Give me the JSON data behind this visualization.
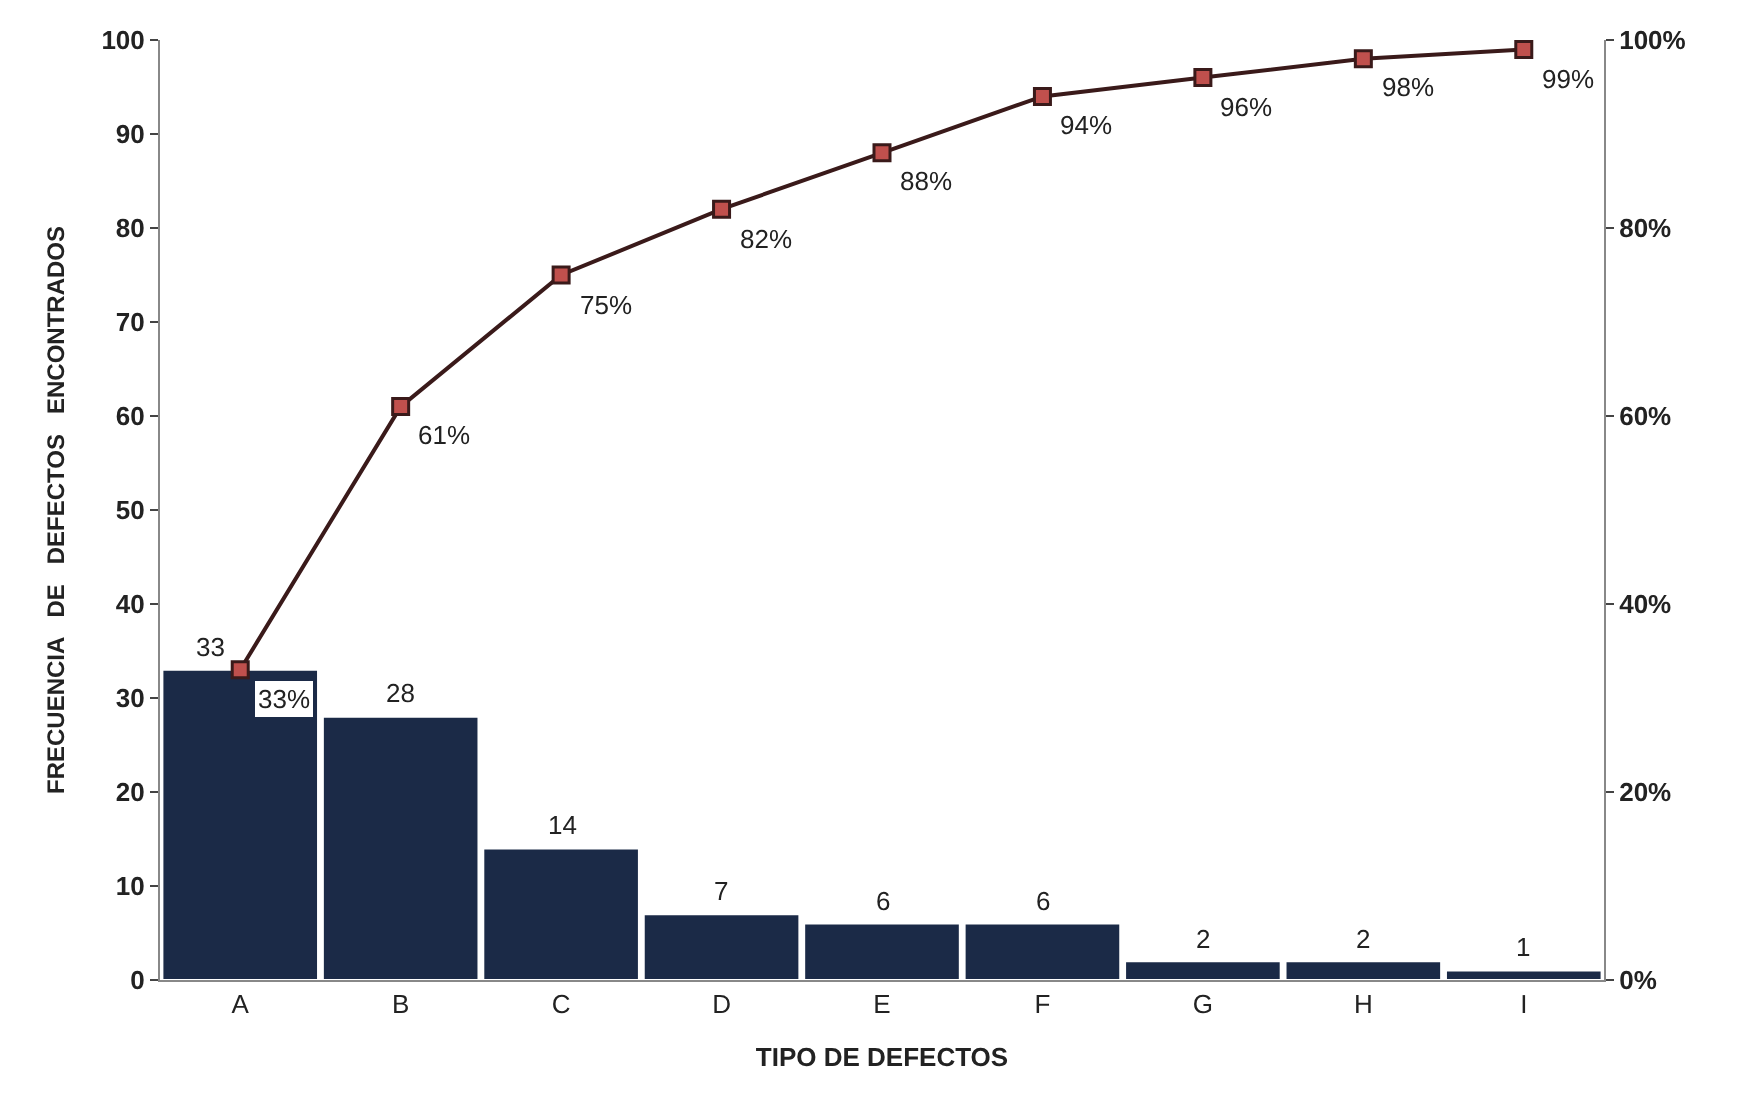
{
  "chart_data": {
    "type": "bar",
    "xlabel": "TIPO DE DEFECTOS",
    "ylabel": "FRECUENCIA   DE   DEFECTOS   ENCONTRADOS",
    "categories": [
      "A",
      "B",
      "C",
      "D",
      "E",
      "F",
      "G",
      "H",
      "I"
    ],
    "series": [
      {
        "color": "#1b2a47",
        "values": [
          33,
          28,
          14,
          7,
          6,
          6,
          2,
          2,
          1
        ],
        "value_labels": [
          "33",
          "28",
          "14",
          "7",
          "6",
          "6",
          "2",
          "2",
          "1"
        ]
      },
      {
        "type": "line",
        "axis": "y2",
        "color": "#3a1a1a",
        "marker": "square",
        "values": [
          33,
          61,
          75,
          82,
          88,
          94,
          96,
          98,
          99
        ],
        "value_labels": [
          "33%",
          "61%",
          "75%",
          "82%",
          "88%",
          "94%",
          "96%",
          "98%",
          "99%"
        ]
      }
    ],
    "ylim": [
      0,
      100
    ],
    "yticks": [
      0,
      10,
      20,
      30,
      40,
      50,
      60,
      70,
      80,
      90,
      100
    ],
    "y2lim": [
      0,
      100
    ],
    "y2ticks": [
      {
        "value": 0,
        "label": "0%"
      },
      {
        "value": 20,
        "label": "20%"
      },
      {
        "value": 40,
        "label": "40%"
      },
      {
        "value": 60,
        "label": "60%"
      },
      {
        "value": 80,
        "label": "80%"
      },
      {
        "value": 100,
        "label": "100%"
      }
    ]
  }
}
